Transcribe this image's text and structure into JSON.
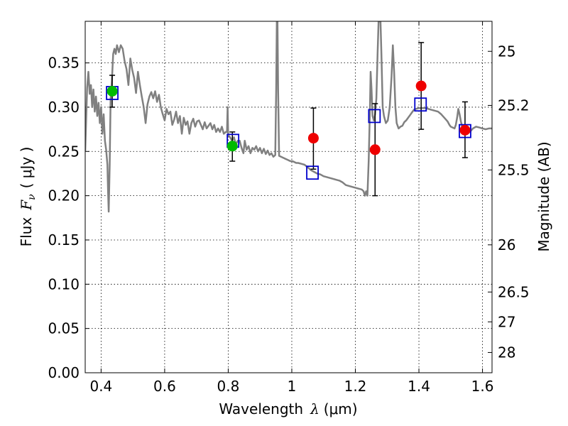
{
  "chart_data": {
    "type": "scatter",
    "title": "",
    "xlabel_prefix": "Wavelength",
    "xlabel_symbol": "λ",
    "xlabel_unit": "(μm)",
    "ylabel_prefix": "Flux",
    "ylabel_symbol": "F",
    "ylabel_subscript": "ν",
    "ylabel_unit": "( μJy )",
    "y2label": "Magnitude (AB)",
    "xlim": [
      0.35,
      1.63
    ],
    "ylim": [
      0.0,
      0.397
    ],
    "grid": true,
    "x_ticks": [
      {
        "value": 0.4,
        "label": "0.4"
      },
      {
        "value": 0.6,
        "label": "0.6"
      },
      {
        "value": 0.8,
        "label": "0.8"
      },
      {
        "value": 1.0,
        "label": "1"
      },
      {
        "value": 1.2,
        "label": "1.2"
      },
      {
        "value": 1.4,
        "label": "1.4"
      },
      {
        "value": 1.6,
        "label": "1.6"
      }
    ],
    "y_ticks": [
      {
        "value": 0.0,
        "label": "0.00"
      },
      {
        "value": 0.05,
        "label": "0.05"
      },
      {
        "value": 0.1,
        "label": "0.10"
      },
      {
        "value": 0.15,
        "label": "0.15"
      },
      {
        "value": 0.2,
        "label": "0.20"
      },
      {
        "value": 0.25,
        "label": "0.25"
      },
      {
        "value": 0.3,
        "label": "0.30"
      },
      {
        "value": 0.35,
        "label": "0.35"
      }
    ],
    "y2_ticks": [
      {
        "flux": 0.3631,
        "label": "25"
      },
      {
        "flux": 0.302,
        "label": "25.2"
      },
      {
        "flux": 0.2291,
        "label": "25.5"
      },
      {
        "flux": 0.1445,
        "label": "26"
      },
      {
        "flux": 0.0912,
        "label": "26.5"
      },
      {
        "flux": 0.0575,
        "label": "27"
      },
      {
        "flux": 0.0229,
        "label": "28"
      }
    ],
    "series": [
      {
        "kind": "model-spectrum",
        "color": "#808080",
        "points": [
          [
            0.35,
            0.25
          ],
          [
            0.356,
            0.322
          ],
          [
            0.36,
            0.34
          ],
          [
            0.364,
            0.315
          ],
          [
            0.368,
            0.325
          ],
          [
            0.372,
            0.3
          ],
          [
            0.376,
            0.32
          ],
          [
            0.38,
            0.295
          ],
          [
            0.384,
            0.312
          ],
          [
            0.388,
            0.29
          ],
          [
            0.392,
            0.305
          ],
          [
            0.396,
            0.282
          ],
          [
            0.4,
            0.3
          ],
          [
            0.404,
            0.27
          ],
          [
            0.408,
            0.292
          ],
          [
            0.412,
            0.262
          ],
          [
            0.416,
            0.252
          ],
          [
            0.42,
            0.235
          ],
          [
            0.422,
            0.205
          ],
          [
            0.424,
            0.182
          ],
          [
            0.427,
            0.235
          ],
          [
            0.43,
            0.31
          ],
          [
            0.434,
            0.33
          ],
          [
            0.438,
            0.36
          ],
          [
            0.442,
            0.366
          ],
          [
            0.446,
            0.36
          ],
          [
            0.45,
            0.37
          ],
          [
            0.456,
            0.362
          ],
          [
            0.462,
            0.37
          ],
          [
            0.468,
            0.366
          ],
          [
            0.474,
            0.352
          ],
          [
            0.48,
            0.343
          ],
          [
            0.486,
            0.325
          ],
          [
            0.492,
            0.355
          ],
          [
            0.498,
            0.342
          ],
          [
            0.504,
            0.333
          ],
          [
            0.51,
            0.316
          ],
          [
            0.516,
            0.34
          ],
          [
            0.522,
            0.325
          ],
          [
            0.528,
            0.312
          ],
          [
            0.534,
            0.3
          ],
          [
            0.54,
            0.282
          ],
          [
            0.546,
            0.303
          ],
          [
            0.552,
            0.312
          ],
          [
            0.558,
            0.317
          ],
          [
            0.564,
            0.31
          ],
          [
            0.57,
            0.318
          ],
          [
            0.576,
            0.306
          ],
          [
            0.582,
            0.314
          ],
          [
            0.588,
            0.3
          ],
          [
            0.594,
            0.292
          ],
          [
            0.6,
            0.285
          ],
          [
            0.606,
            0.298
          ],
          [
            0.612,
            0.292
          ],
          [
            0.618,
            0.295
          ],
          [
            0.624,
            0.28
          ],
          [
            0.63,
            0.286
          ],
          [
            0.636,
            0.295
          ],
          [
            0.642,
            0.282
          ],
          [
            0.648,
            0.29
          ],
          [
            0.654,
            0.27
          ],
          [
            0.66,
            0.288
          ],
          [
            0.666,
            0.28
          ],
          [
            0.672,
            0.284
          ],
          [
            0.678,
            0.27
          ],
          [
            0.684,
            0.282
          ],
          [
            0.69,
            0.287
          ],
          [
            0.696,
            0.278
          ],
          [
            0.702,
            0.284
          ],
          [
            0.708,
            0.285
          ],
          [
            0.714,
            0.28
          ],
          [
            0.72,
            0.275
          ],
          [
            0.726,
            0.283
          ],
          [
            0.732,
            0.276
          ],
          [
            0.738,
            0.279
          ],
          [
            0.744,
            0.282
          ],
          [
            0.75,
            0.275
          ],
          [
            0.756,
            0.28
          ],
          [
            0.762,
            0.272
          ],
          [
            0.768,
            0.276
          ],
          [
            0.774,
            0.272
          ],
          [
            0.78,
            0.278
          ],
          [
            0.786,
            0.27
          ],
          [
            0.792,
            0.272
          ],
          [
            0.796,
            0.272
          ],
          [
            0.798,
            0.3
          ],
          [
            0.8,
            0.268
          ],
          [
            0.806,
            0.266
          ],
          [
            0.812,
            0.262
          ],
          [
            0.818,
            0.266
          ],
          [
            0.824,
            0.258
          ],
          [
            0.83,
            0.262
          ],
          [
            0.836,
            0.262
          ],
          [
            0.842,
            0.254
          ],
          [
            0.848,
            0.248
          ],
          [
            0.852,
            0.262
          ],
          [
            0.858,
            0.252
          ],
          [
            0.864,
            0.256
          ],
          [
            0.87,
            0.248
          ],
          [
            0.876,
            0.254
          ],
          [
            0.882,
            0.252
          ],
          [
            0.888,
            0.256
          ],
          [
            0.894,
            0.25
          ],
          [
            0.9,
            0.254
          ],
          [
            0.906,
            0.248
          ],
          [
            0.912,
            0.253
          ],
          [
            0.918,
            0.247
          ],
          [
            0.924,
            0.251
          ],
          [
            0.93,
            0.246
          ],
          [
            0.936,
            0.248
          ],
          [
            0.942,
            0.244
          ],
          [
            0.948,
            0.246
          ],
          [
            0.951,
            0.32
          ],
          [
            0.953,
            0.397
          ],
          [
            0.955,
            0.397
          ],
          [
            0.957,
            0.32
          ],
          [
            0.96,
            0.245
          ],
          [
            0.966,
            0.244
          ],
          [
            0.972,
            0.243
          ],
          [
            0.978,
            0.242
          ],
          [
            0.984,
            0.241
          ],
          [
            0.99,
            0.24
          ],
          [
            0.996,
            0.239
          ],
          [
            1.002,
            0.239
          ],
          [
            1.008,
            0.238
          ],
          [
            1.014,
            0.237
          ],
          [
            1.02,
            0.237
          ],
          [
            1.03,
            0.236
          ],
          [
            1.04,
            0.235
          ],
          [
            1.05,
            0.232
          ],
          [
            1.06,
            0.229
          ],
          [
            1.07,
            0.227
          ],
          [
            1.08,
            0.225
          ],
          [
            1.09,
            0.224
          ],
          [
            1.1,
            0.222
          ],
          [
            1.11,
            0.221
          ],
          [
            1.12,
            0.22
          ],
          [
            1.13,
            0.219
          ],
          [
            1.14,
            0.218
          ],
          [
            1.15,
            0.217
          ],
          [
            1.16,
            0.215
          ],
          [
            1.17,
            0.212
          ],
          [
            1.18,
            0.211
          ],
          [
            1.19,
            0.21
          ],
          [
            1.2,
            0.209
          ],
          [
            1.21,
            0.208
          ],
          [
            1.22,
            0.207
          ],
          [
            1.226,
            0.205
          ],
          [
            1.23,
            0.2
          ],
          [
            1.234,
            0.205
          ],
          [
            1.238,
            0.2
          ],
          [
            1.242,
            0.24
          ],
          [
            1.246,
            0.3
          ],
          [
            1.248,
            0.34
          ],
          [
            1.251,
            0.32
          ],
          [
            1.254,
            0.29
          ],
          [
            1.258,
            0.285
          ],
          [
            1.262,
            0.292
          ],
          [
            1.266,
            0.31
          ],
          [
            1.27,
            0.36
          ],
          [
            1.273,
            0.397
          ],
          [
            1.276,
            0.397
          ],
          [
            1.279,
            0.397
          ],
          [
            1.282,
            0.36
          ],
          [
            1.286,
            0.3
          ],
          [
            1.29,
            0.29
          ],
          [
            1.296,
            0.282
          ],
          [
            1.302,
            0.285
          ],
          [
            1.308,
            0.3
          ],
          [
            1.314,
            0.335
          ],
          [
            1.318,
            0.37
          ],
          [
            1.322,
            0.34
          ],
          [
            1.326,
            0.3
          ],
          [
            1.33,
            0.282
          ],
          [
            1.336,
            0.276
          ],
          [
            1.342,
            0.278
          ],
          [
            1.348,
            0.279
          ],
          [
            1.354,
            0.283
          ],
          [
            1.36,
            0.285
          ],
          [
            1.366,
            0.288
          ],
          [
            1.372,
            0.291
          ],
          [
            1.378,
            0.294
          ],
          [
            1.384,
            0.297
          ],
          [
            1.39,
            0.298
          ],
          [
            1.4,
            0.299
          ],
          [
            1.41,
            0.299
          ],
          [
            1.42,
            0.299
          ],
          [
            1.43,
            0.298
          ],
          [
            1.44,
            0.297
          ],
          [
            1.45,
            0.296
          ],
          [
            1.46,
            0.295
          ],
          [
            1.47,
            0.292
          ],
          [
            1.48,
            0.288
          ],
          [
            1.49,
            0.284
          ],
          [
            1.496,
            0.28
          ],
          [
            1.5,
            0.278
          ],
          [
            1.506,
            0.277
          ],
          [
            1.512,
            0.276
          ],
          [
            1.516,
            0.28
          ],
          [
            1.52,
            0.288
          ],
          [
            1.524,
            0.298
          ],
          [
            1.528,
            0.292
          ],
          [
            1.532,
            0.284
          ],
          [
            1.536,
            0.278
          ],
          [
            1.54,
            0.273
          ],
          [
            1.55,
            0.27
          ],
          [
            1.56,
            0.272
          ],
          [
            1.57,
            0.276
          ],
          [
            1.58,
            0.278
          ],
          [
            1.59,
            0.277
          ],
          [
            1.6,
            0.276
          ],
          [
            1.61,
            0.275
          ],
          [
            1.62,
            0.276
          ],
          [
            1.63,
            0.276
          ]
        ]
      },
      {
        "kind": "model-photometry",
        "marker": "open-square",
        "color": "#0000cc",
        "points": [
          {
            "x": 0.435,
            "y": 0.316
          },
          {
            "x": 0.815,
            "y": 0.262
          },
          {
            "x": 1.065,
            "y": 0.226
          },
          {
            "x": 1.26,
            "y": 0.29
          },
          {
            "x": 1.405,
            "y": 0.303
          },
          {
            "x": 1.545,
            "y": 0.273
          }
        ]
      },
      {
        "kind": "observed-optical",
        "marker": "filled-circle",
        "color": "#00bb00",
        "points": [
          {
            "x": 0.435,
            "y": 0.318,
            "err_low": 0.3,
            "err_high": 0.336
          },
          {
            "x": 0.813,
            "y": 0.256,
            "err_low": 0.239,
            "err_high": 0.272
          }
        ]
      },
      {
        "kind": "observed-nir",
        "marker": "filled-circle",
        "color": "#ee0000",
        "points": [
          {
            "x": 1.068,
            "y": 0.265,
            "err_low": 0.23,
            "err_high": 0.299
          },
          {
            "x": 1.262,
            "y": 0.252,
            "err_low": 0.2,
            "err_high": 0.304
          },
          {
            "x": 1.407,
            "y": 0.324,
            "err_low": 0.275,
            "err_high": 0.373
          },
          {
            "x": 1.545,
            "y": 0.274,
            "err_low": 0.243,
            "err_high": 0.306
          }
        ]
      }
    ]
  }
}
